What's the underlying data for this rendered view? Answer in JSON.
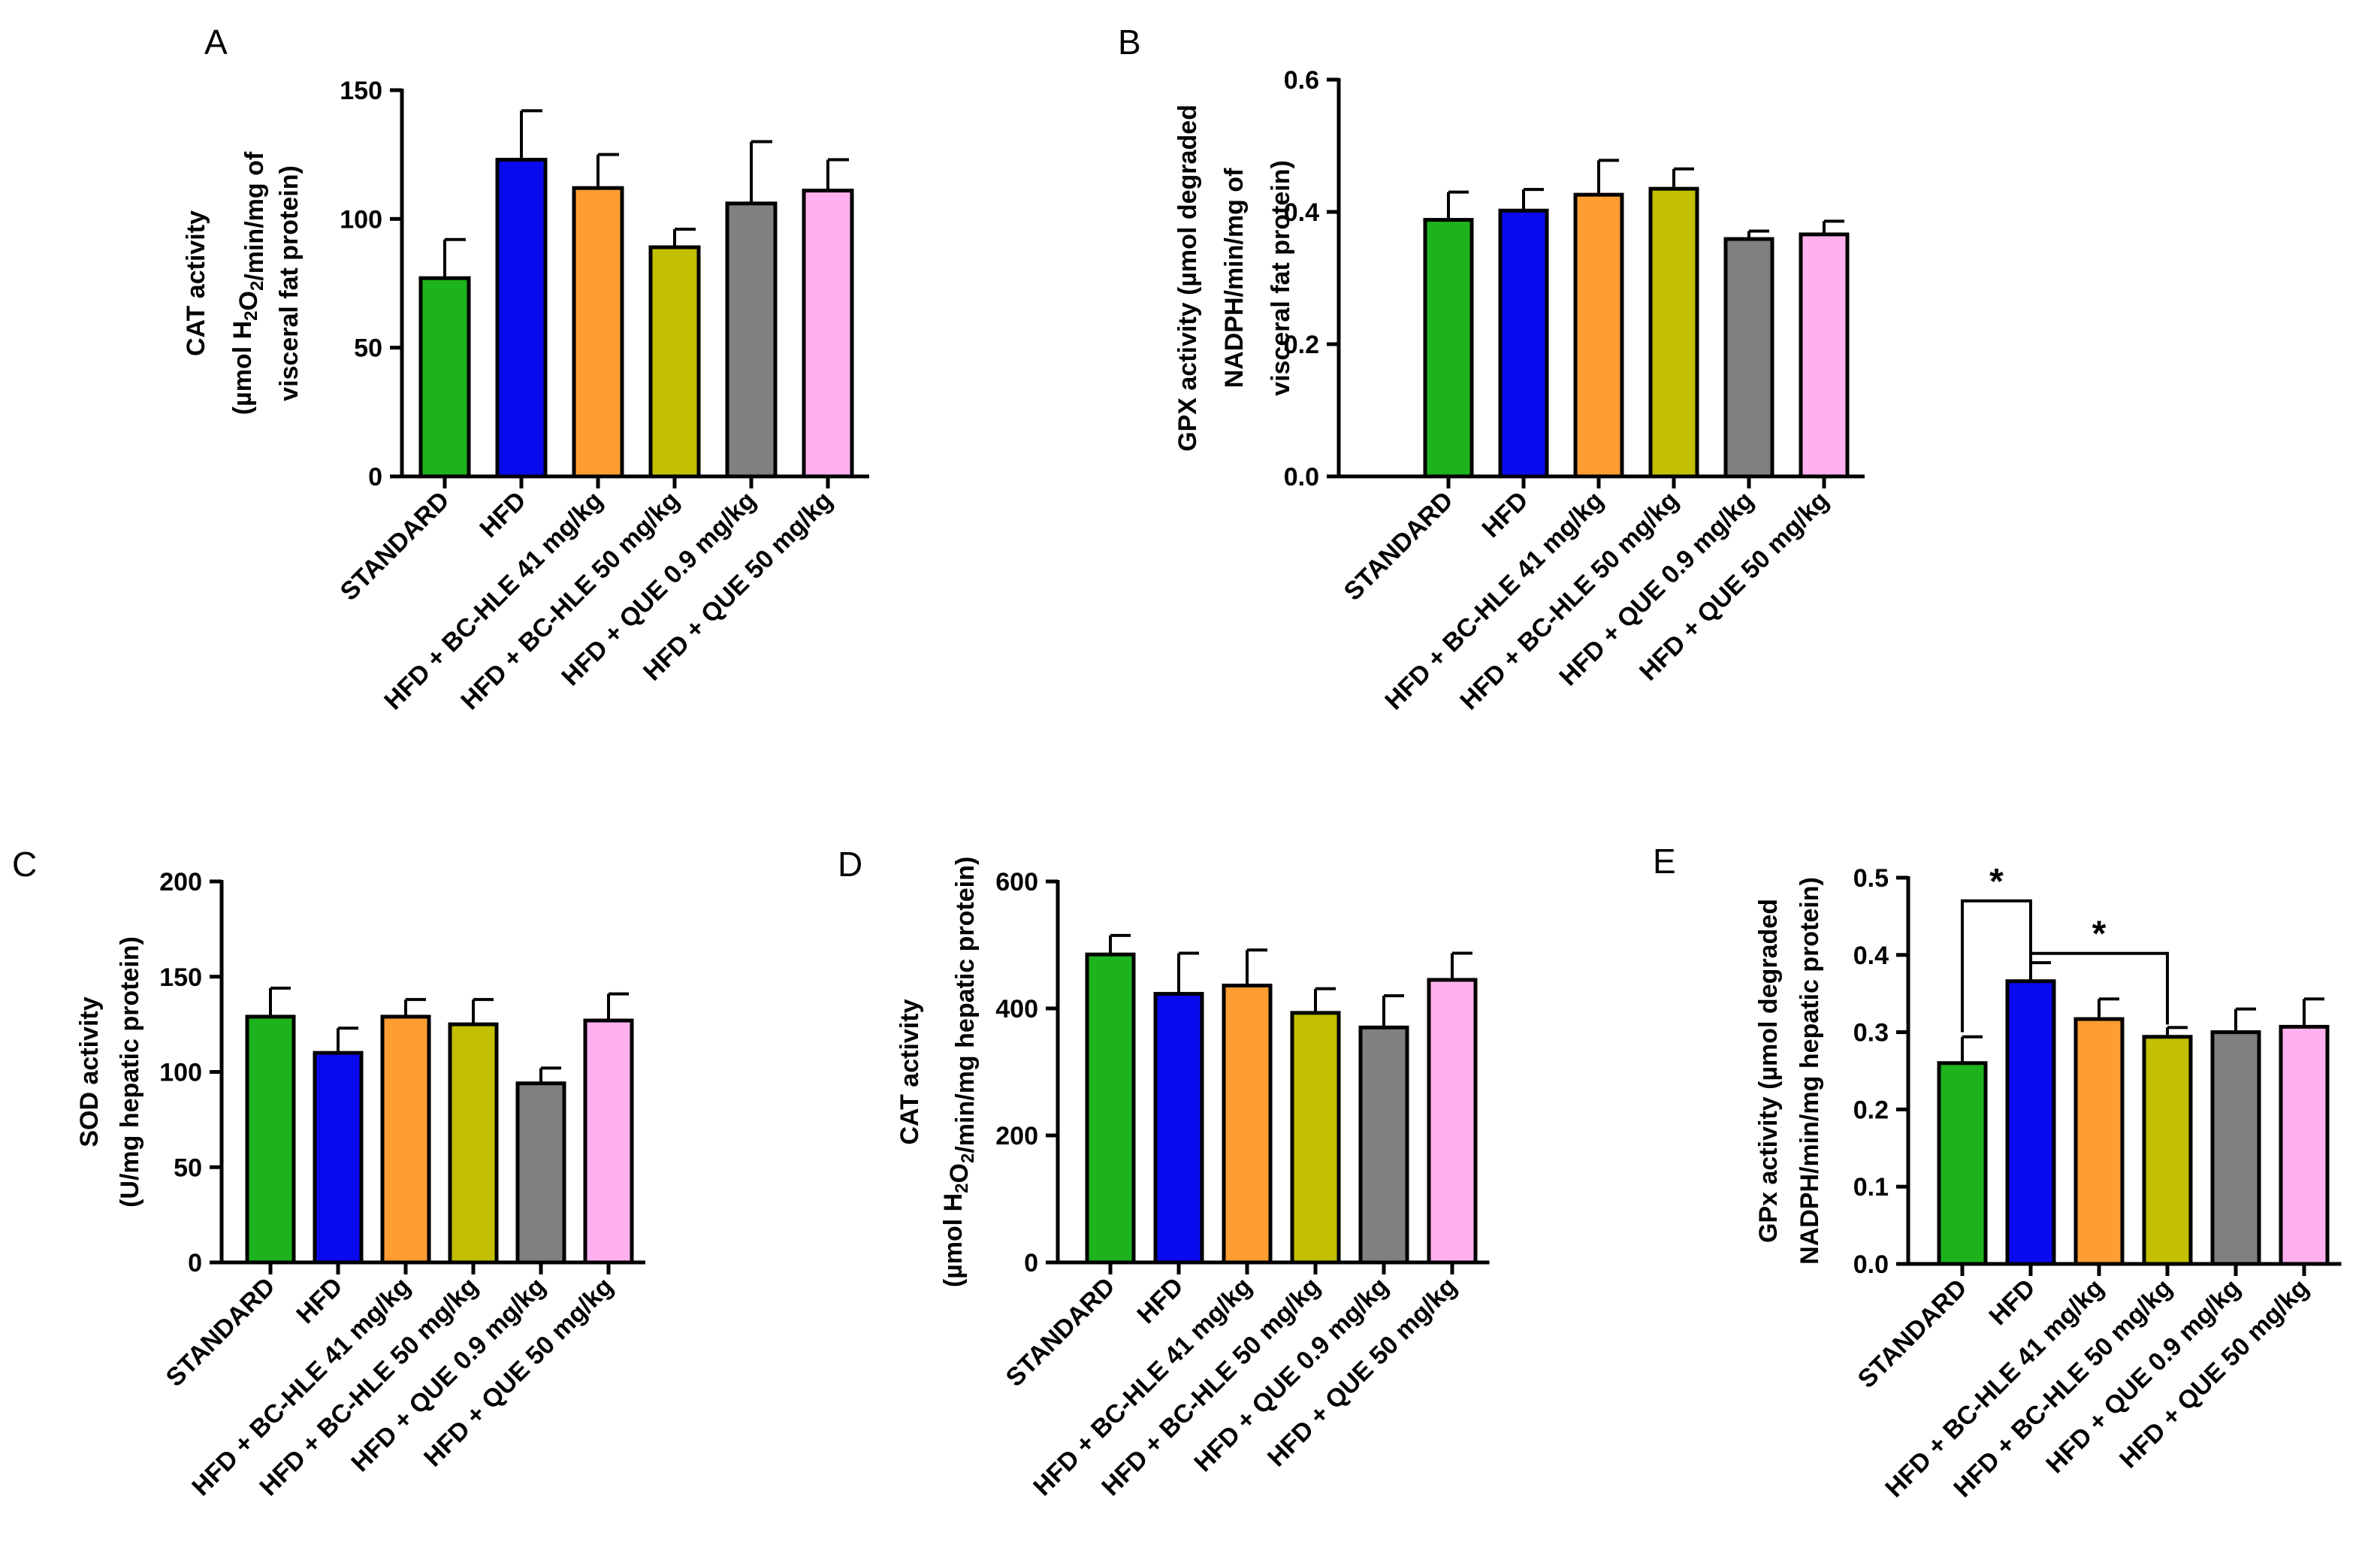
{
  "colors": [
    "#1db31d",
    "#0a0aee",
    "#ff9d33",
    "#c2c000",
    "#808080",
    "#ffb0ee"
  ],
  "chart_data": [
    {
      "type": "bar",
      "panel": "A",
      "categories": [
        "STANDARD",
        "HFD",
        "HFD + BC-HLE 41 mg/kg",
        "HFD + BC-HLE 50 mg/kg",
        "HFD + QUE 0.9 mg/kg",
        "HFD + QUE 50 mg/kg"
      ],
      "values": [
        77,
        123,
        112,
        89,
        106,
        111
      ],
      "errors": [
        15,
        19,
        13,
        7,
        24,
        12
      ],
      "ylim": [
        0,
        150
      ],
      "yticks": [
        0,
        50,
        100,
        150
      ],
      "ytick_labels": [
        "0",
        "50",
        "100",
        "150"
      ],
      "ylabel_lines": [
        {
          "parts": [
            {
              "text": "CAT activity"
            }
          ]
        },
        {
          "parts": [
            {
              "text": "(µmol H"
            },
            {
              "text": "2",
              "sub": true
            },
            {
              "text": "O"
            },
            {
              "text": "2",
              "sub": true
            },
            {
              "text": "/min/mg of"
            }
          ]
        },
        {
          "parts": [
            {
              "text": "visceral fat protein)"
            }
          ]
        }
      ],
      "annotations": []
    },
    {
      "type": "bar",
      "panel": "B",
      "categories": [
        "STANDARD",
        "HFD",
        "HFD + BC-HLE 41 mg/kg",
        "HFD + BC-HLE 50 mg/kg",
        "HFD + QUE 0.9 mg/kg",
        "HFD + QUE 50 mg/kg"
      ],
      "values": [
        0.388,
        0.402,
        0.426,
        0.435,
        0.359,
        0.366
      ],
      "errors": [
        0.042,
        0.032,
        0.052,
        0.03,
        0.012,
        0.02
      ],
      "ylim": [
        0,
        0.6
      ],
      "yticks": [
        0,
        0.2,
        0.4,
        0.6
      ],
      "ytick_labels": [
        "0.0",
        "0.2",
        "0.4",
        "0.6"
      ],
      "ylabel_lines": [
        {
          "parts": [
            {
              "text": "GPX activity (µmol degraded"
            }
          ]
        },
        {
          "parts": [
            {
              "text": "NADPH/min/mg of"
            }
          ]
        },
        {
          "parts": [
            {
              "text": "visceral fat protein)"
            }
          ]
        }
      ],
      "annotations": []
    },
    {
      "type": "bar",
      "panel": "C",
      "categories": [
        "STANDARD",
        "HFD",
        "HFD + BC-HLE 41 mg/kg",
        "HFD + BC-HLE 50 mg/kg",
        "HFD + QUE 0.9 mg/kg",
        "HFD + QUE 50 mg/kg"
      ],
      "values": [
        129,
        110,
        129,
        125,
        94,
        127
      ],
      "errors": [
        15,
        13,
        9,
        13,
        8,
        14
      ],
      "ylim": [
        0,
        200
      ],
      "yticks": [
        0,
        50,
        100,
        150,
        200
      ],
      "ytick_labels": [
        "0",
        "50",
        "100",
        "150",
        "200"
      ],
      "ylabel_lines": [
        {
          "parts": [
            {
              "text": "SOD activity"
            }
          ]
        },
        {
          "parts": [
            {
              "text": "(U/mg hepatic protein)"
            }
          ]
        }
      ],
      "annotations": []
    },
    {
      "type": "bar",
      "panel": "D",
      "categories": [
        "STANDARD",
        "HFD",
        "HFD + BC-HLE 41 mg/kg",
        "HFD + BC-HLE 50 mg/kg",
        "HFD + QUE 0.9 mg/kg",
        "HFD + QUE 50 mg/kg"
      ],
      "values": [
        485,
        423,
        436,
        393,
        370,
        445
      ],
      "errors": [
        30,
        64,
        56,
        38,
        50,
        42
      ],
      "ylim": [
        0,
        600
      ],
      "yticks": [
        0,
        200,
        400,
        600
      ],
      "ytick_labels": [
        "0",
        "200",
        "400",
        "600"
      ],
      "ylabel_lines": [
        {
          "parts": [
            {
              "text": "CAT activity"
            }
          ]
        },
        {
          "parts": [
            {
              "text": "(µmol H"
            },
            {
              "text": "2",
              "sub": true
            },
            {
              "text": "O"
            },
            {
              "text": "2",
              "sub": true
            },
            {
              "text": "/min/mg hepatic protein)"
            }
          ]
        }
      ],
      "annotations": []
    },
    {
      "type": "bar",
      "panel": "E",
      "categories": [
        "STANDARD",
        "HFD",
        "HFD + BC-HLE 41 mg/kg",
        "HFD + BC-HLE 50 mg/kg",
        "HFD + QUE 0.9 mg/kg",
        "HFD + QUE 50 mg/kg"
      ],
      "values": [
        0.26,
        0.366,
        0.317,
        0.294,
        0.3,
        0.307
      ],
      "errors": [
        0.034,
        0.024,
        0.026,
        0.012,
        0.03,
        0.036
      ],
      "ylim": [
        0,
        0.5
      ],
      "yticks": [
        0,
        0.1,
        0.2,
        0.3,
        0.4,
        0.5
      ],
      "ytick_labels": [
        "0.0",
        "0.1",
        "0.2",
        "0.3",
        "0.4",
        "0.5"
      ],
      "ylabel_lines": [
        {
          "parts": [
            {
              "text": "GPx activity (µmol degraded"
            }
          ]
        },
        {
          "parts": [
            {
              "text": "NADPH/min/mg hepatic protein)"
            }
          ]
        }
      ],
      "annotations": [
        {
          "from": 0,
          "to": 1,
          "y": 0.47,
          "drop_from": 0.3,
          "drop_to": 0.39,
          "label": "*"
        },
        {
          "from": 1,
          "to": 3,
          "y": 0.402,
          "drop_from": 0.39,
          "drop_to": 0.31,
          "label": "*"
        }
      ]
    }
  ]
}
